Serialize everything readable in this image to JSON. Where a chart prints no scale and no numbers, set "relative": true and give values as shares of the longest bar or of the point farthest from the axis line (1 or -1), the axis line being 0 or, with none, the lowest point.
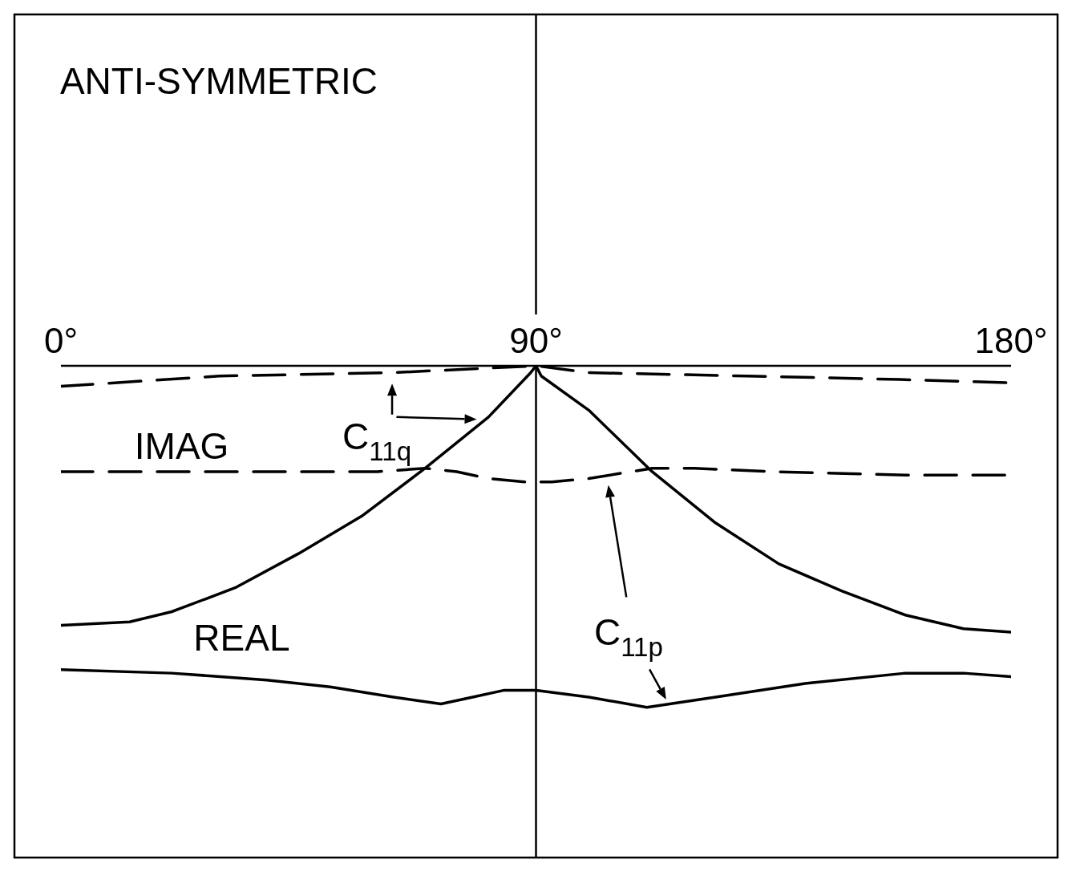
{
  "chart_data": {
    "type": "line",
    "title": "ANTI-SYMMETRIC",
    "relative": true,
    "marker": "none",
    "xlim": [
      0,
      180
    ],
    "xticks": [
      {
        "value": 0,
        "label": "0°"
      },
      {
        "value": 90,
        "label": "90°"
      },
      {
        "value": 180,
        "label": "180°"
      }
    ],
    "series": [
      {
        "color": "#000000",
        "line_style": "dashed",
        "x": [
          0,
          30,
          63,
          90,
          100,
          130,
          159,
          180
        ],
        "values": [
          -0.06,
          -0.03,
          -0.02,
          0,
          -0.02,
          -0.03,
          -0.04,
          -0.05
        ]
      },
      {
        "color": "#000000",
        "line_style": "dashed",
        "x": [
          0,
          30,
          60,
          69,
          75,
          81,
          88,
          90,
          93,
          100,
          108,
          112,
          120,
          135,
          160,
          180
        ],
        "values": [
          -0.31,
          -0.31,
          -0.31,
          -0.3,
          -0.31,
          -0.33,
          -0.34,
          -0.34,
          -0.34,
          -0.33,
          -0.31,
          -0.3,
          -0.3,
          -0.31,
          -0.32,
          -0.32
        ]
      },
      {
        "color": "#000000",
        "line_style": "solid",
        "x": [
          0,
          13,
          21,
          33,
          45,
          57,
          69,
          81,
          89,
          90,
          91,
          100,
          112,
          124,
          136,
          148,
          160,
          171,
          180
        ],
        "values": [
          -0.76,
          -0.75,
          -0.72,
          -0.65,
          -0.55,
          -0.44,
          -0.3,
          -0.15,
          -0.02,
          0,
          -0.03,
          -0.13,
          -0.31,
          -0.46,
          -0.58,
          -0.66,
          -0.73,
          -0.77,
          -0.78
        ]
      },
      {
        "color": "#000000",
        "line_style": "solid",
        "x": [
          0,
          21,
          39,
          51,
          63,
          72,
          78,
          84,
          90,
          100,
          111,
          124,
          141,
          160,
          171,
          180
        ],
        "values": [
          -0.89,
          -0.9,
          -0.92,
          -0.94,
          -0.97,
          -0.99,
          -0.97,
          -0.95,
          -0.95,
          -0.97,
          -1,
          -0.97,
          -0.93,
          -0.9,
          -0.9,
          -0.91
        ]
      }
    ],
    "ref_lines": [
      {
        "axis": "x",
        "value": 90,
        "color": "#000000"
      }
    ],
    "annotations": [
      "IMAG",
      "REAL",
      "C$_{11q}$",
      "C$_{11p}$"
    ]
  }
}
